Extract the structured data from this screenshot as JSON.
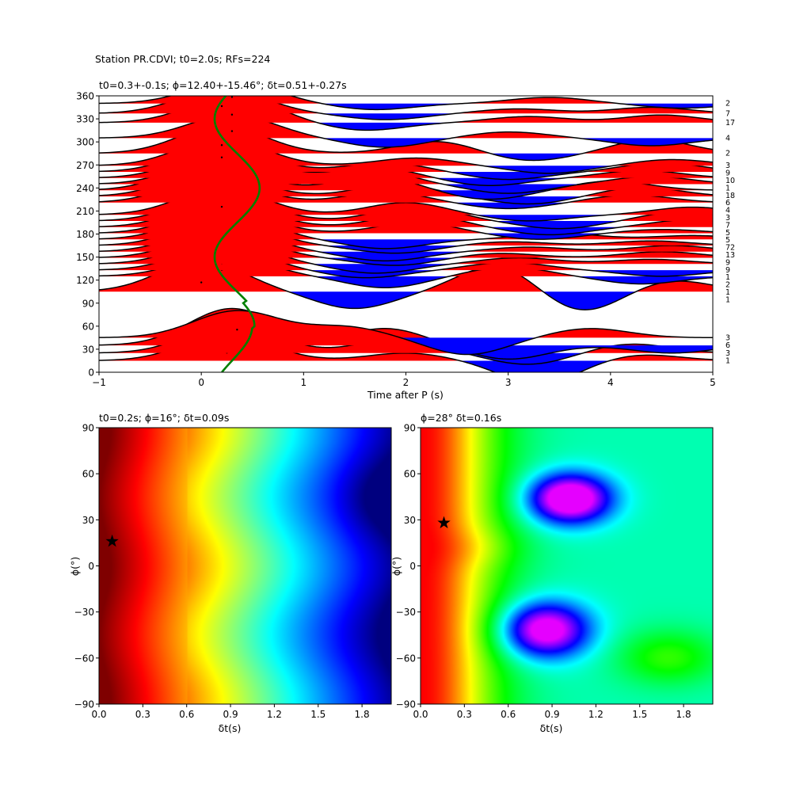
{
  "figure": {
    "suptitle": "Station PR.CDVI; t0=2.0s; RFs=224"
  },
  "chart_data": [
    {
      "type": "line",
      "panel": "receiver-functions",
      "title": "t0=0.3+-0.1s; ϕ=12.40+-15.46°; δt=0.51+-0.27s",
      "xlabel": "Time after P (s)",
      "ylabel": "",
      "xlim": [
        -1,
        5
      ],
      "ylim": [
        0,
        360
      ],
      "xticks": [
        "−1",
        "0",
        "1",
        "2",
        "3",
        "4",
        "5"
      ],
      "yticks": [
        "0",
        "30",
        "60",
        "90",
        "120",
        "150",
        "180",
        "210",
        "240",
        "270",
        "300",
        "330",
        "360"
      ],
      "fill_positive_color": "#ff0000",
      "fill_negative_color": "#0000ff",
      "trace_color": "#000000",
      "delay_curve_color": "#008000",
      "traces": [
        {
          "baz": 15,
          "count": "1",
          "peaks": [
            [
              0.25,
              35
            ],
            [
              2.0,
              10
            ],
            [
              3.3,
              -30
            ],
            [
              4.3,
              8
            ]
          ]
        },
        {
          "baz": 25,
          "count": "3",
          "peaks": [
            [
              0.3,
              40
            ],
            [
              1.9,
              18
            ],
            [
              3.2,
              -15
            ],
            [
              4.2,
              12
            ]
          ]
        },
        {
          "baz": 35,
          "count": "6",
          "peaks": [
            [
              0.3,
              48
            ],
            [
              1.8,
              22
            ],
            [
              3.0,
              -18
            ],
            [
              4.6,
              -10
            ]
          ]
        },
        {
          "baz": 45,
          "count": "3",
          "peaks": [
            [
              0.35,
              35
            ],
            [
              1.4,
              14
            ],
            [
              2.6,
              -22
            ],
            [
              3.8,
              12
            ]
          ]
        },
        {
          "baz": 105,
          "count": "1",
          "peaks": [
            [
              0.0,
              40
            ],
            [
              1.5,
              -22
            ],
            [
              2.9,
              35
            ],
            [
              3.7,
              -28
            ],
            [
              4.6,
              15
            ]
          ]
        },
        {
          "baz": 125,
          "count": "1",
          "peaks": [
            [
              0.2,
              28
            ],
            [
              1.8,
              -15
            ],
            [
              3.0,
              12
            ],
            [
              4.3,
              -10
            ]
          ]
        },
        {
          "baz": 133,
          "count": "2",
          "peaks": [
            [
              0.2,
              30
            ],
            [
              1.6,
              -10
            ],
            [
              3.0,
              10
            ],
            [
              4.5,
              -8
            ]
          ]
        },
        {
          "baz": 141,
          "count": "1",
          "peaks": [
            [
              0.2,
              32
            ],
            [
              1.7,
              -12
            ],
            [
              3.1,
              8
            ],
            [
              4.4,
              6
            ]
          ]
        },
        {
          "baz": 149,
          "count": "9",
          "peaks": [
            [
              0.2,
              34
            ],
            [
              1.9,
              -10
            ],
            [
              2.9,
              6
            ],
            [
              4.5,
              8
            ]
          ]
        },
        {
          "baz": 157,
          "count": "9",
          "peaks": [
            [
              0.2,
              35
            ],
            [
              1.8,
              -12
            ],
            [
              3.2,
              6
            ],
            [
              4.6,
              8
            ]
          ]
        },
        {
          "baz": 165,
          "count": "13",
          "peaks": [
            [
              0.2,
              36
            ],
            [
              1.9,
              -10
            ],
            [
              3.0,
              5
            ],
            [
              4.4,
              6
            ]
          ]
        },
        {
          "baz": 173,
          "count": "72",
          "peaks": [
            [
              0.2,
              38
            ],
            [
              1.8,
              -12
            ],
            [
              3.5,
              8
            ],
            [
              4.8,
              5
            ]
          ]
        },
        {
          "baz": 181,
          "count": "5",
          "peaks": [
            [
              0.2,
              36
            ],
            [
              2.1,
              14
            ],
            [
              3.3,
              -8
            ],
            [
              4.5,
              5
            ]
          ]
        },
        {
          "baz": 189,
          "count": "5",
          "peaks": [
            [
              0.2,
              36
            ],
            [
              2.1,
              18
            ],
            [
              3.4,
              -10
            ],
            [
              4.8,
              10
            ]
          ]
        },
        {
          "baz": 197,
          "count": "7",
          "peaks": [
            [
              0.2,
              36
            ],
            [
              2.1,
              20
            ],
            [
              3.5,
              -10
            ],
            [
              4.7,
              12
            ]
          ]
        },
        {
          "baz": 205,
          "count": "3",
          "peaks": [
            [
              0.2,
              35
            ],
            [
              2.0,
              16
            ],
            [
              3.2,
              -8
            ],
            [
              4.8,
              10
            ]
          ]
        },
        {
          "baz": 221,
          "count": "4",
          "peaks": [
            [
              0.1,
              32
            ],
            [
              1.8,
              14
            ],
            [
              3.0,
              -8
            ],
            [
              4.2,
              10
            ]
          ]
        },
        {
          "baz": 229,
          "count": "6",
          "peaks": [
            [
              0.1,
              34
            ],
            [
              1.9,
              16
            ],
            [
              3.2,
              -10
            ],
            [
              4.3,
              12
            ]
          ]
        },
        {
          "baz": 237,
          "count": "18",
          "peaks": [
            [
              0.1,
              36
            ],
            [
              1.7,
              18
            ],
            [
              2.8,
              -12
            ],
            [
              4.0,
              12
            ]
          ]
        },
        {
          "baz": 245,
          "count": "1",
          "peaks": [
            [
              0.2,
              36
            ],
            [
              1.6,
              22
            ],
            [
              3.0,
              -12
            ],
            [
              4.4,
              10
            ]
          ]
        },
        {
          "baz": 253,
          "count": "10",
          "peaks": [
            [
              0.2,
              36
            ],
            [
              1.7,
              14
            ],
            [
              2.8,
              -10
            ],
            [
              4.3,
              10
            ]
          ]
        },
        {
          "baz": 261,
          "count": "9",
          "peaks": [
            [
              0.2,
              36
            ],
            [
              1.8,
              12
            ],
            [
              3.0,
              -10
            ],
            [
              4.5,
              12
            ]
          ]
        },
        {
          "baz": 269,
          "count": "3",
          "peaks": [
            [
              0.2,
              36
            ],
            [
              2.1,
              10
            ],
            [
              3.4,
              -10
            ],
            [
              4.6,
              8
            ]
          ]
        },
        {
          "baz": 285,
          "count": "2",
          "peaks": [
            [
              0.2,
              36
            ],
            [
              2.3,
              16
            ],
            [
              3.2,
              -10
            ],
            [
              4.4,
              18
            ]
          ]
        },
        {
          "baz": 305,
          "count": "4",
          "peaks": [
            [
              0.3,
              30
            ],
            [
              1.8,
              -12
            ],
            [
              3.0,
              8
            ],
            [
              4.4,
              -10
            ]
          ]
        },
        {
          "baz": 325,
          "count": "17",
          "peaks": [
            [
              0.3,
              35
            ],
            [
              1.6,
              -10
            ],
            [
              3.2,
              8
            ],
            [
              4.5,
              10
            ]
          ]
        },
        {
          "baz": 337,
          "count": "7",
          "peaks": [
            [
              0.2,
              32
            ],
            [
              1.8,
              -8
            ],
            [
              3.1,
              6
            ],
            [
              4.4,
              8
            ]
          ]
        },
        {
          "baz": 350,
          "count": "2",
          "peaks": [
            [
              0.3,
              28
            ],
            [
              1.7,
              -8
            ],
            [
              3.4,
              8
            ],
            [
              4.7,
              -6
            ]
          ]
        }
      ],
      "delay_curve": {
        "t0": 0.3,
        "amplitude": 0.22
      }
    },
    {
      "type": "heatmap",
      "panel": "grid-search-left",
      "title": "t0=0.2s; ϕ=16°; δt=0.09s",
      "xlabel": "δt(s)",
      "ylabel": "ϕ(°)",
      "xlim": [
        0,
        2.0
      ],
      "ylim": [
        -90,
        90
      ],
      "xticks": [
        "0.0",
        "0.3",
        "0.6",
        "0.9",
        "1.2",
        "1.5",
        "1.8"
      ],
      "yticks": [
        "−90",
        "−60",
        "−30",
        "0",
        "30",
        "60",
        "90"
      ],
      "colormap": "jet",
      "best_fit": {
        "dt": 0.09,
        "phi": 16
      }
    },
    {
      "type": "heatmap",
      "panel": "grid-search-right",
      "title": "ϕ=28° δt=0.16s",
      "xlabel": "δt(s)",
      "ylabel": "ϕ(°)",
      "xlim": [
        0,
        2.0
      ],
      "ylim": [
        -90,
        90
      ],
      "xticks": [
        "0.0",
        "0.3",
        "0.6",
        "0.9",
        "1.2",
        "1.5",
        "1.8"
      ],
      "yticks": [
        "−90",
        "−60",
        "−30",
        "0",
        "30",
        "60",
        "90"
      ],
      "colormap": "gist_rainbow",
      "best_fit": {
        "dt": 0.16,
        "phi": 28
      }
    }
  ]
}
